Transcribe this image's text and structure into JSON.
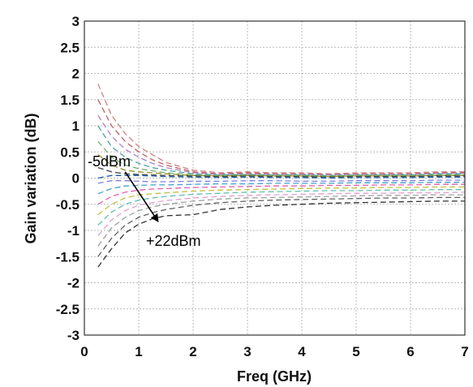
{
  "chart_data": {
    "type": "line",
    "xlabel": "Freq (GHz)",
    "ylabel": "Gain variation (dB)",
    "xlim": [
      0,
      7
    ],
    "ylim": [
      -3,
      3
    ],
    "x_ticks": [
      "0",
      "1",
      "2",
      "3",
      "4",
      "5",
      "6",
      "7"
    ],
    "y_ticks": [
      "3",
      "2.5",
      "2",
      "1.5",
      "1",
      "0.5",
      "0",
      "-0.5",
      "-1",
      "-1.5",
      "-2",
      "-2.5",
      "-3"
    ],
    "grid": true,
    "legend": "none",
    "annotations": [
      {
        "text": "-5dBm",
        "x": 0.05,
        "y": 0.37
      },
      {
        "text": "+22dBm",
        "x": 1.1,
        "y": -1.15
      }
    ],
    "arrow": {
      "from": [
        0.75,
        0.12
      ],
      "to": [
        1.35,
        -0.82
      ]
    },
    "x": [
      0.25,
      0.5,
      0.75,
      1.0,
      1.25,
      1.5,
      2.0,
      2.5,
      3.0,
      3.5,
      4.0,
      4.5,
      5.0,
      5.5,
      6.0,
      6.5,
      7.0
    ],
    "series": [
      {
        "color": "#d08080",
        "values": [
          1.8,
          1.2,
          0.85,
          0.6,
          0.45,
          0.3,
          0.15,
          0.1,
          0.12,
          0.1,
          0.1,
          0.08,
          0.1,
          0.1,
          0.1,
          0.12,
          0.12
        ]
      },
      {
        "color": "#c06060",
        "values": [
          1.5,
          1.0,
          0.7,
          0.5,
          0.35,
          0.25,
          0.12,
          0.08,
          0.1,
          0.08,
          0.08,
          0.07,
          0.08,
          0.08,
          0.08,
          0.1,
          0.1
        ]
      },
      {
        "color": "#b080c0",
        "values": [
          1.2,
          0.8,
          0.55,
          0.4,
          0.28,
          0.2,
          0.1,
          0.07,
          0.08,
          0.07,
          0.07,
          0.06,
          0.07,
          0.07,
          0.07,
          0.09,
          0.09
        ]
      },
      {
        "color": "#50a0a0",
        "values": [
          1.0,
          0.6,
          0.4,
          0.28,
          0.2,
          0.15,
          0.08,
          0.06,
          0.07,
          0.06,
          0.06,
          0.05,
          0.06,
          0.06,
          0.06,
          0.08,
          0.08
        ]
      },
      {
        "color": "#70b070",
        "values": [
          0.7,
          0.4,
          0.25,
          0.18,
          0.14,
          0.1,
          0.06,
          0.05,
          0.06,
          0.05,
          0.05,
          0.04,
          0.05,
          0.05,
          0.05,
          0.06,
          0.06
        ]
      },
      {
        "color": "#909020",
        "values": [
          0.45,
          0.25,
          0.15,
          0.12,
          0.1,
          0.08,
          0.05,
          0.04,
          0.05,
          0.04,
          0.04,
          0.03,
          0.04,
          0.04,
          0.04,
          0.05,
          0.05
        ]
      },
      {
        "color": "#404040",
        "values": [
          0.2,
          0.12,
          0.08,
          0.07,
          0.06,
          0.05,
          0.04,
          0.03,
          0.04,
          0.03,
          0.03,
          0.02,
          0.03,
          0.03,
          0.03,
          0.04,
          0.04
        ]
      },
      {
        "color": "#2060a0",
        "values": [
          0.0,
          0.05,
          0.05,
          0.05,
          0.04,
          0.03,
          0.02,
          0.01,
          0.02,
          0.01,
          0.01,
          0.0,
          0.01,
          0.01,
          0.01,
          0.02,
          0.02
        ]
      },
      {
        "color": "#8080e0",
        "values": [
          -0.1,
          -0.05,
          -0.05,
          -0.06,
          -0.07,
          -0.07,
          -0.06,
          -0.06,
          -0.05,
          -0.05,
          -0.06,
          -0.06,
          -0.05,
          -0.05,
          -0.05,
          -0.04,
          -0.04
        ]
      },
      {
        "color": "#40a0d0",
        "values": [
          -0.3,
          -0.2,
          -0.15,
          -0.14,
          -0.13,
          -0.13,
          -0.12,
          -0.11,
          -0.11,
          -0.1,
          -0.1,
          -0.1,
          -0.09,
          -0.09,
          -0.09,
          -0.08,
          -0.08
        ]
      },
      {
        "color": "#e060b0",
        "values": [
          -0.5,
          -0.35,
          -0.27,
          -0.23,
          -0.21,
          -0.2,
          -0.18,
          -0.17,
          -0.16,
          -0.15,
          -0.15,
          -0.14,
          -0.14,
          -0.13,
          -0.13,
          -0.12,
          -0.12
        ]
      },
      {
        "color": "#c0c040",
        "values": [
          -0.7,
          -0.5,
          -0.38,
          -0.32,
          -0.3,
          -0.28,
          -0.25,
          -0.23,
          -0.22,
          -0.21,
          -0.2,
          -0.19,
          -0.19,
          -0.18,
          -0.18,
          -0.17,
          -0.17
        ]
      },
      {
        "color": "#60c0b0",
        "values": [
          -0.9,
          -0.65,
          -0.5,
          -0.42,
          -0.38,
          -0.35,
          -0.31,
          -0.29,
          -0.27,
          -0.26,
          -0.25,
          -0.24,
          -0.24,
          -0.23,
          -0.23,
          -0.22,
          -0.22
        ]
      },
      {
        "color": "#e0a0d0",
        "values": [
          -1.1,
          -0.8,
          -0.62,
          -0.52,
          -0.47,
          -0.43,
          -0.38,
          -0.35,
          -0.33,
          -0.32,
          -0.31,
          -0.3,
          -0.29,
          -0.29,
          -0.28,
          -0.28,
          -0.27
        ]
      },
      {
        "color": "#a0a0a0",
        "values": [
          -1.3,
          -0.95,
          -0.75,
          -0.62,
          -0.55,
          -0.5,
          -0.44,
          -0.4,
          -0.38,
          -0.37,
          -0.36,
          -0.35,
          -0.34,
          -0.33,
          -0.33,
          -0.32,
          -0.32
        ]
      },
      {
        "color": "#606060",
        "values": [
          -1.5,
          -1.15,
          -0.9,
          -0.75,
          -0.66,
          -0.6,
          -0.52,
          -0.47,
          -0.44,
          -0.42,
          -0.41,
          -0.4,
          -0.39,
          -0.38,
          -0.38,
          -0.37,
          -0.37
        ]
      },
      {
        "color": "#303030",
        "values": [
          -1.7,
          -1.35,
          -1.05,
          -0.88,
          -0.78,
          -0.72,
          -0.7,
          -0.6,
          -0.55,
          -0.52,
          -0.5,
          -0.48,
          -0.47,
          -0.46,
          -0.45,
          -0.44,
          -0.44
        ]
      }
    ]
  }
}
